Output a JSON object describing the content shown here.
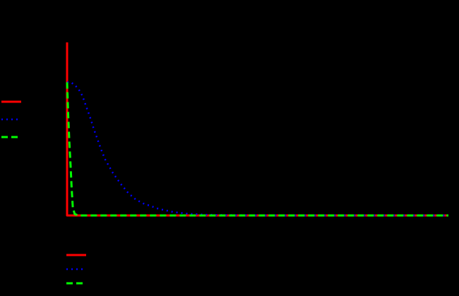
{
  "chart_data": {
    "type": "line",
    "title": "",
    "xlabel": "",
    "ylabel": "",
    "xlim": [
      0,
      100
    ],
    "ylim": [
      0,
      1.3
    ],
    "grid": false,
    "background": "#000000",
    "series": [
      {
        "color": "#ff0000",
        "style": "solid",
        "x": [
          0,
          0,
          0.3,
          1,
          2,
          5,
          10,
          20,
          40,
          60,
          80,
          100
        ],
        "y": [
          1.3,
          0,
          0,
          0,
          0,
          0,
          0,
          0,
          0,
          0,
          0,
          0
        ]
      },
      {
        "color": "#0000ff",
        "style": "dotted",
        "x": [
          0,
          1,
          2,
          3,
          4,
          5,
          6,
          7,
          8,
          9,
          10,
          12,
          14,
          16,
          18,
          20,
          24,
          28,
          32,
          36,
          40,
          50,
          60,
          70,
          80,
          90,
          100
        ],
        "y": [
          1.0,
          1.0,
          0.98,
          0.95,
          0.9,
          0.82,
          0.74,
          0.65,
          0.57,
          0.49,
          0.42,
          0.32,
          0.24,
          0.17,
          0.12,
          0.09,
          0.05,
          0.025,
          0.012,
          0.006,
          0.003,
          0.001,
          0,
          0,
          0,
          0,
          0
        ]
      },
      {
        "color": "#00ff00",
        "style": "dashed",
        "x": [
          0,
          0.3,
          0.6,
          0.9,
          1.2,
          1.5,
          2,
          3,
          5,
          10,
          20,
          40,
          60,
          80,
          100
        ],
        "y": [
          1.0,
          0.75,
          0.55,
          0.38,
          0.2,
          0.06,
          0.01,
          0,
          0,
          0,
          0,
          0,
          0,
          0,
          0
        ]
      }
    ],
    "legends": [
      {
        "placement": "left",
        "series_colors": [
          "#ff0000",
          "#0000ff",
          "#00ff00"
        ]
      },
      {
        "placement": "bottom-left",
        "series_colors": [
          "#ff0000",
          "#0000ff",
          "#00ff00"
        ]
      }
    ]
  }
}
